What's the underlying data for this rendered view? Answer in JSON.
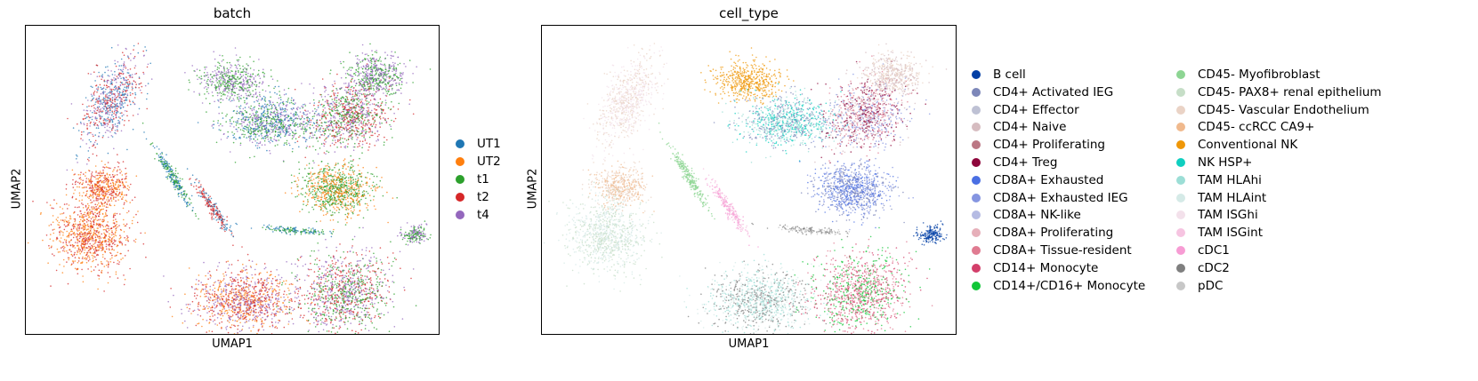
{
  "chart_data": [
    {
      "type": "scatter",
      "title": "batch",
      "xlabel": "UMAP1",
      "ylabel": "UMAP2",
      "grid": false,
      "legend": {
        "placement": "right",
        "entries": [
          {
            "name": "UT1",
            "color": "#1f77b4"
          },
          {
            "name": "UT2",
            "color": "#ff7f0e"
          },
          {
            "name": "t1",
            "color": "#2ca02c"
          },
          {
            "name": "t2",
            "color": "#d62728"
          },
          {
            "name": "t4",
            "color": "#9467bd"
          }
        ]
      }
    },
    {
      "type": "scatter",
      "title": "cell_type",
      "xlabel": "UMAP1",
      "ylabel": "UMAP2",
      "grid": false,
      "legend": {
        "placement": "right",
        "columns": 2,
        "entries": [
          {
            "name": "B cell",
            "color": "#023fa5"
          },
          {
            "name": "CD4+ Activated IEG",
            "color": "#7d87b9"
          },
          {
            "name": "CD4+ Effector",
            "color": "#bec1d4"
          },
          {
            "name": "CD4+ Naive",
            "color": "#d6bcc0"
          },
          {
            "name": "CD4+ Proliferating",
            "color": "#bb7784"
          },
          {
            "name": "CD4+ Treg",
            "color": "#8e063b"
          },
          {
            "name": "CD8A+ Exhausted",
            "color": "#4a6fe3"
          },
          {
            "name": "CD8A+ Exhausted IEG",
            "color": "#8595e1"
          },
          {
            "name": "CD8A+ NK-like",
            "color": "#b5bbe3"
          },
          {
            "name": "CD8A+ Proliferating",
            "color": "#e6afb9"
          },
          {
            "name": "CD8A+ Tissue-resident",
            "color": "#e07b91"
          },
          {
            "name": "CD14+ Monocyte",
            "color": "#d33f6a"
          },
          {
            "name": "CD14+/CD16+ Monocyte",
            "color": "#11c638"
          },
          {
            "name": "CD45- Myofibroblast",
            "color": "#8dd593"
          },
          {
            "name": "CD45- PAX8+ renal epithelium",
            "color": "#c6dec7"
          },
          {
            "name": "CD45- Vascular Endothelium",
            "color": "#ead3c6"
          },
          {
            "name": "CD45- ccRCC CA9+",
            "color": "#f0b98d"
          },
          {
            "name": "Conventional NK",
            "color": "#ef9708"
          },
          {
            "name": "NK HSP+",
            "color": "#0fcfc0"
          },
          {
            "name": "TAM HLAhi",
            "color": "#9cded6"
          },
          {
            "name": "TAM HLAint",
            "color": "#d5eae7"
          },
          {
            "name": "TAM ISGhi",
            "color": "#f3e1eb"
          },
          {
            "name": "TAM ISGint",
            "color": "#f6c4e1"
          },
          {
            "name": "cDC1",
            "color": "#f79cd4"
          },
          {
            "name": "cDC2",
            "color": "#7f7f7f"
          },
          {
            "name": "pDC",
            "color": "#c7c7c7"
          }
        ]
      }
    }
  ]
}
